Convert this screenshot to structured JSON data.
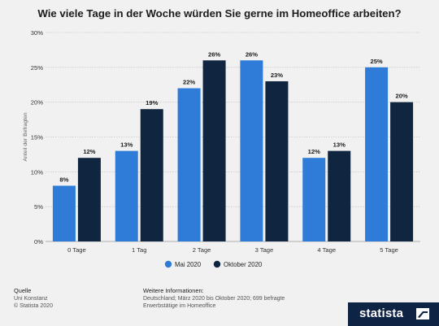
{
  "title": "Wie viele Tage in der Woche würden Sie gerne im Homeoffice arbeiten?",
  "chart_data": {
    "type": "bar",
    "title": "Wie viele Tage in der Woche würden Sie gerne im Homeoffice arbeiten?",
    "xlabel": "",
    "ylabel": "Anteil der Befragten",
    "ylim": [
      0,
      30
    ],
    "yticks": [
      "0%",
      "5%",
      "10%",
      "15%",
      "20%",
      "25%",
      "30%"
    ],
    "grid": true,
    "legend_position": "bottom",
    "categories": [
      "0 Tage",
      "1 Tag",
      "2 Tage",
      "3 Tage",
      "4 Tage",
      "5 Tage"
    ],
    "series": [
      {
        "name": "Mai 2020",
        "color": "#2e7cd8",
        "values": [
          8,
          13,
          22,
          26,
          12,
          25
        ],
        "labels": [
          "8%",
          "13%",
          "22%",
          "26%",
          "12%",
          "25%"
        ]
      },
      {
        "name": "Oktober 2020",
        "color": "#10253f",
        "values": [
          12,
          19,
          26,
          23,
          13,
          20
        ],
        "labels": [
          "12%",
          "19%",
          "26%",
          "23%",
          "13%",
          "20%"
        ]
      }
    ]
  },
  "footer": {
    "source_heading": "Quelle",
    "source_lines": [
      "Uni Konstanz",
      "© Statista 2020"
    ],
    "info_heading": "Weitere Informationen:",
    "info_lines": [
      "Deutschland; März 2020 bis Oktober 2020; 699 befragte",
      "Erwerbstätige im Homeoffice"
    ]
  },
  "brand": {
    "name": "statista",
    "icon": "statista-logo-icon"
  }
}
